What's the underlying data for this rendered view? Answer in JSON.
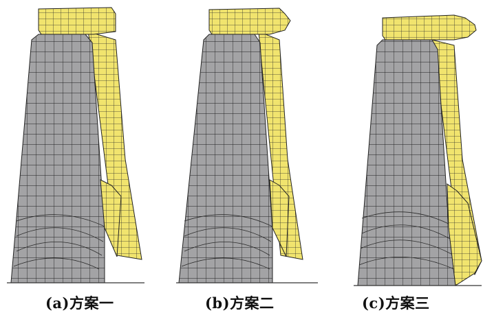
{
  "colors": {
    "yellow_mesh": "#f1e46e",
    "gray_mesh": "#a3a3a5",
    "mesh_line": "#1e1e1e",
    "background": "#ffffff"
  },
  "panels": [
    {
      "id": "a",
      "caption": "(a)方案一"
    },
    {
      "id": "b",
      "caption": "(b)方案二"
    },
    {
      "id": "c",
      "caption": "(c)方案三"
    }
  ]
}
